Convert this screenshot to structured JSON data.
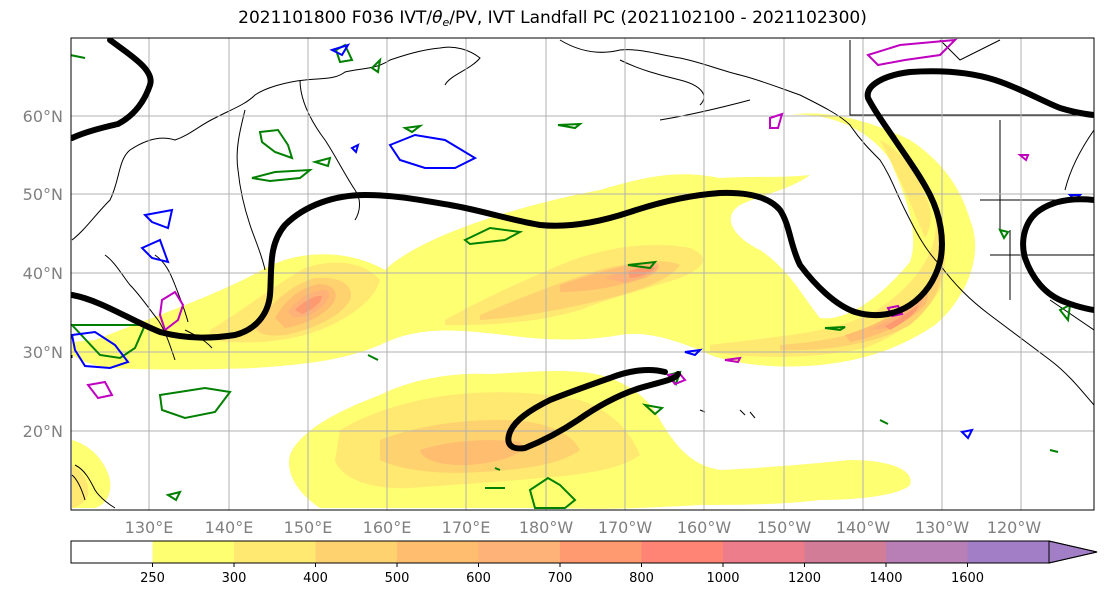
{
  "title": {
    "prefix": "2021101800 F036 IVT/",
    "theta": "θ",
    "sub": "e",
    "suffix": "/PV, IVT Landfall PC (2021102100 - 2021102300)"
  },
  "latitude_labels": [
    "60°N",
    "50°N",
    "40°N",
    "30°N",
    "20°N"
  ],
  "longitude_labels": [
    "130°E",
    "140°E",
    "150°E",
    "160°E",
    "170°E",
    "180°W",
    "170°W",
    "160°W",
    "150°W",
    "140°W",
    "130°W",
    "120°W"
  ],
  "colorbar": {
    "ticks": [
      "250",
      "300",
      "400",
      "500",
      "600",
      "700",
      "800",
      "1000",
      "1200",
      "1400",
      "1600"
    ],
    "colors": [
      "#ffffff",
      "#ffff72",
      "#ffe970",
      "#ffd270",
      "#ffbd70",
      "#ffb278",
      "#ff9a70",
      "#ff8476",
      "#ee7d8c",
      "#d27c98",
      "#b77fb5",
      "#a27ec7"
    ]
  },
  "contour_colors": {
    "pv_thick": "#000000",
    "green": "#008000",
    "blue": "#0000ff",
    "magenta": "#c000c0"
  }
}
